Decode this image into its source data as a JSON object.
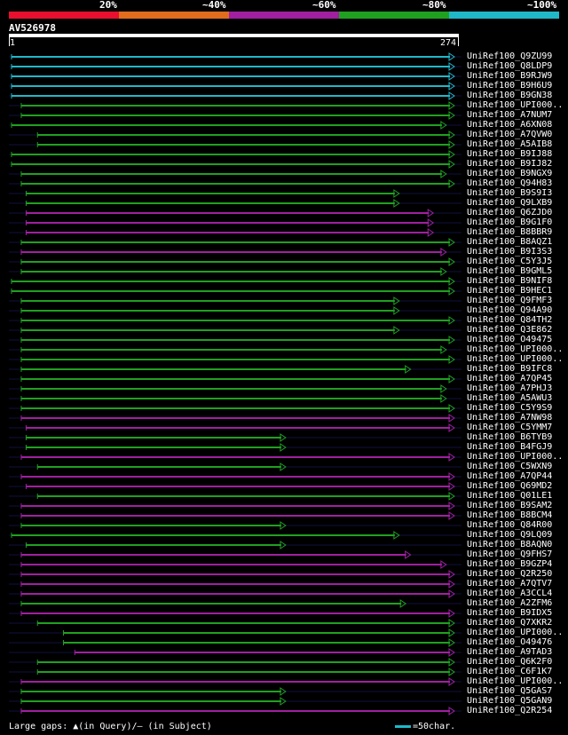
{
  "legend": {
    "percent_labels": [
      "20%",
      "~40%",
      "~60%",
      "~80%",
      "~100%"
    ],
    "colors": [
      "#e8102e",
      "#e06c1e",
      "#a020a0",
      "#20a020",
      "#20b8c8"
    ]
  },
  "query": {
    "id": "AV526978",
    "start": "1",
    "end": "274"
  },
  "hits": [
    {
      "label": "UniRef100_Q9ZU99",
      "band": 4,
      "start": 1,
      "end": 274
    },
    {
      "label": "UniRef100_Q8LDP9",
      "band": 4,
      "start": 1,
      "end": 274
    },
    {
      "label": "UniRef100_B9RJW9",
      "band": 4,
      "start": 1,
      "end": 274
    },
    {
      "label": "UniRef100_B9H6U9",
      "band": 4,
      "start": 1,
      "end": 274
    },
    {
      "label": "UniRef100_B9GN38",
      "band": 4,
      "start": 1,
      "end": 274
    },
    {
      "label": "UniRef100_UPI000..",
      "band": 3,
      "start": 7,
      "end": 274
    },
    {
      "label": "UniRef100_A7NUM7",
      "band": 3,
      "start": 7,
      "end": 274
    },
    {
      "label": "UniRef100_A6XN08",
      "band": 3,
      "start": 1,
      "end": 269
    },
    {
      "label": "UniRef100_A7QVW0",
      "band": 3,
      "start": 17,
      "end": 274
    },
    {
      "label": "UniRef100_A5AIB8",
      "band": 3,
      "start": 17,
      "end": 274
    },
    {
      "label": "UniRef100_B9IJ88",
      "band": 3,
      "start": 1,
      "end": 274
    },
    {
      "label": "UniRef100_B9IJ82",
      "band": 3,
      "start": 1,
      "end": 274
    },
    {
      "label": "UniRef100_B9NGX9",
      "band": 3,
      "start": 7,
      "end": 269
    },
    {
      "label": "UniRef100_Q94H83",
      "band": 3,
      "start": 7,
      "end": 274
    },
    {
      "label": "UniRef100_B9S9I3",
      "band": 3,
      "start": 10,
      "end": 240
    },
    {
      "label": "UniRef100_Q9LXB9",
      "band": 3,
      "start": 10,
      "end": 240
    },
    {
      "label": "UniRef100_Q6ZJD0",
      "band": 2,
      "start": 10,
      "end": 261
    },
    {
      "label": "UniRef100_B9G1F0",
      "band": 2,
      "start": 10,
      "end": 261
    },
    {
      "label": "UniRef100_B8BBR9",
      "band": 2,
      "start": 10,
      "end": 261
    },
    {
      "label": "UniRef100_B8AQZ1",
      "band": 3,
      "start": 7,
      "end": 274
    },
    {
      "label": "UniRef100_B9I3S3",
      "band": 2,
      "start": 7,
      "end": 269
    },
    {
      "label": "UniRef100_C5Y3J5",
      "band": 3,
      "start": 7,
      "end": 274
    },
    {
      "label": "UniRef100_B9GML5",
      "band": 3,
      "start": 7,
      "end": 269
    },
    {
      "label": "UniRef100_B9NIF8",
      "band": 3,
      "start": 1,
      "end": 274
    },
    {
      "label": "UniRef100_B9HEC1",
      "band": 3,
      "start": 1,
      "end": 274
    },
    {
      "label": "UniRef100_Q9FMF3",
      "band": 3,
      "start": 7,
      "end": 240
    },
    {
      "label": "UniRef100_Q94A90",
      "band": 3,
      "start": 7,
      "end": 240
    },
    {
      "label": "UniRef100_Q84TH2",
      "band": 3,
      "start": 7,
      "end": 274
    },
    {
      "label": "UniRef100_Q3E862",
      "band": 3,
      "start": 7,
      "end": 240
    },
    {
      "label": "UniRef100_O49475",
      "band": 3,
      "start": 7,
      "end": 274
    },
    {
      "label": "UniRef100_UPI000..",
      "band": 3,
      "start": 7,
      "end": 269
    },
    {
      "label": "UniRef100_UPI000..",
      "band": 3,
      "start": 7,
      "end": 274
    },
    {
      "label": "UniRef100_B9IFC8",
      "band": 3,
      "start": 7,
      "end": 247
    },
    {
      "label": "UniRef100_A7QP45",
      "band": 3,
      "start": 7,
      "end": 274
    },
    {
      "label": "UniRef100_A7PHJ3",
      "band": 3,
      "start": 7,
      "end": 269
    },
    {
      "label": "UniRef100_A5AWU3",
      "band": 3,
      "start": 7,
      "end": 269
    },
    {
      "label": "UniRef100_C5Y9S9",
      "band": 3,
      "start": 7,
      "end": 274
    },
    {
      "label": "UniRef100_A7NW98",
      "band": 2,
      "start": 7,
      "end": 274
    },
    {
      "label": "UniRef100_C5YMM7",
      "band": 2,
      "start": 10,
      "end": 274
    },
    {
      "label": "UniRef100_B6TYB9",
      "band": 3,
      "start": 10,
      "end": 170
    },
    {
      "label": "UniRef100_B4FGJ9",
      "band": 3,
      "start": 10,
      "end": 170
    },
    {
      "label": "UniRef100_UPI000..",
      "band": 2,
      "start": 7,
      "end": 274
    },
    {
      "label": "UniRef100_C5WXN9",
      "band": 3,
      "start": 17,
      "end": 170
    },
    {
      "label": "UniRef100_A7QP44",
      "band": 2,
      "start": 7,
      "end": 274
    },
    {
      "label": "UniRef100_Q69MD2",
      "band": 2,
      "start": 10,
      "end": 274
    },
    {
      "label": "UniRef100_Q01LE1",
      "band": 3,
      "start": 17,
      "end": 274
    },
    {
      "label": "UniRef100_B9SAM2",
      "band": 2,
      "start": 7,
      "end": 274
    },
    {
      "label": "UniRef100_B8BCM4",
      "band": 2,
      "start": 7,
      "end": 274
    },
    {
      "label": "UniRef100_Q84R00",
      "band": 3,
      "start": 7,
      "end": 170
    },
    {
      "label": "UniRef100_Q9LQ09",
      "band": 3,
      "start": 1,
      "end": 240
    },
    {
      "label": "UniRef100_B8AQN0",
      "band": 3,
      "start": 10,
      "end": 170
    },
    {
      "label": "UniRef100_Q9FHS7",
      "band": 2,
      "start": 7,
      "end": 247
    },
    {
      "label": "UniRef100_B9GZP4",
      "band": 2,
      "start": 7,
      "end": 269
    },
    {
      "label": "UniRef100_Q2R250",
      "band": 2,
      "start": 7,
      "end": 274
    },
    {
      "label": "UniRef100_A7QTV7",
      "band": 2,
      "start": 7,
      "end": 274
    },
    {
      "label": "UniRef100_A3CCL4",
      "band": 2,
      "start": 7,
      "end": 274
    },
    {
      "label": "UniRef100_A2ZFM6",
      "band": 3,
      "start": 7,
      "end": 244
    },
    {
      "label": "UniRef100_B9IDX5",
      "band": 2,
      "start": 7,
      "end": 274
    },
    {
      "label": "UniRef100_Q7XKR2",
      "band": 3,
      "start": 17,
      "end": 274
    },
    {
      "label": "UniRef100_UPI000..",
      "band": 3,
      "start": 33,
      "end": 274
    },
    {
      "label": "UniRef100_O49476",
      "band": 3,
      "start": 33,
      "end": 274
    },
    {
      "label": "UniRef100_A9TAD3",
      "band": 2,
      "start": 40,
      "end": 274
    },
    {
      "label": "UniRef100_Q6K2F0",
      "band": 3,
      "start": 17,
      "end": 274
    },
    {
      "label": "UniRef100_C6F1K7",
      "band": 3,
      "start": 17,
      "end": 274
    },
    {
      "label": "UniRef100_UPI000..",
      "band": 2,
      "start": 7,
      "end": 274
    },
    {
      "label": "UniRef100_Q5GAS7",
      "band": 3,
      "start": 7,
      "end": 170
    },
    {
      "label": "UniRef100_Q5GAN9",
      "band": 3,
      "start": 7,
      "end": 170
    },
    {
      "label": "UniRef100_Q2R254",
      "band": 2,
      "start": 7,
      "end": 274
    }
  ],
  "footer": {
    "gaps_text": "Large gaps: ▲(in Query)/– (in Subject)",
    "scale_text": "=50char.",
    "scale_color": "#20b8c8"
  }
}
